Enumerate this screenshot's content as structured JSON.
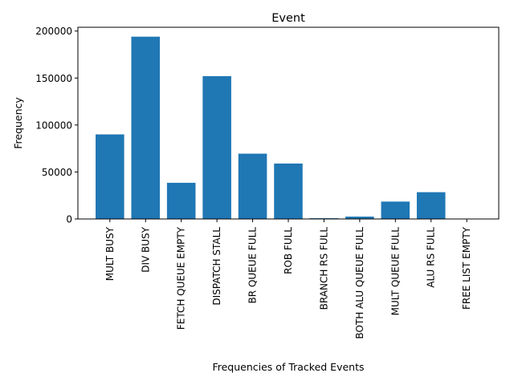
{
  "chart_data": {
    "type": "bar",
    "title": "Event",
    "xlabel": "Frequencies of Tracked Events",
    "ylabel": "Frequency",
    "categories": [
      "MULT BUSY",
      "DIV BUSY",
      "FETCH QUEUE EMPTY",
      "DISPATCH STALL",
      "BR QUEUE FULL",
      "ROB FULL",
      "BRANCH RS FULL",
      "BOTH ALU QUEUE FULL",
      "MULT QUEUE FULL",
      "ALU RS FULL",
      "FREE LIST EMPTY"
    ],
    "values": [
      90000,
      194000,
      38500,
      152000,
      69500,
      59000,
      800,
      2500,
      18500,
      28500,
      0
    ],
    "ylim": [
      0,
      204000
    ],
    "yticks": [
      0,
      50000,
      100000,
      150000,
      200000
    ],
    "ytick_labels": [
      "0",
      "50000",
      "100000",
      "150000",
      "200000"
    ],
    "grid": false,
    "legend": "none",
    "bar_color": "#1f77b4"
  }
}
